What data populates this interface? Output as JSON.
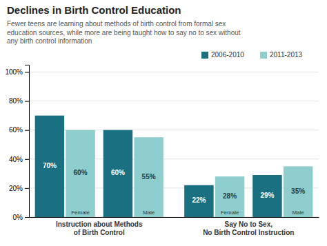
{
  "chart_data": {
    "type": "bar",
    "title": "Declines in Birth Control Education",
    "subtitle": "Fewer teens are learning about methods of birth control from formal sex\neducation sources, while more are being taught how to say no to sex without\nany birth control information",
    "categories": [
      "Female",
      "Male",
      "Female",
      "Male"
    ],
    "group_labels": [
      "Instruction about Methods\nof Birth Control",
      "Say No to Sex,\nNo Birth Control Instruction"
    ],
    "series": [
      {
        "name": "2006-2010",
        "color": "#1a7080",
        "values": [
          70,
          60,
          22,
          29
        ],
        "value_labels": [
          "70%",
          "60%",
          "22%",
          "29%"
        ]
      },
      {
        "name": "2011-2013",
        "color": "#8ecece",
        "values": [
          60,
          55,
          28,
          35
        ],
        "value_labels": [
          "60%",
          "55%",
          "28%",
          "35%"
        ]
      }
    ],
    "ylim": [
      0,
      105
    ],
    "yticks": [
      {
        "value": 0,
        "label": "0%"
      },
      {
        "value": 20,
        "label": "20%"
      },
      {
        "value": 40,
        "label": "40%"
      },
      {
        "value": 60,
        "label": "60%"
      },
      {
        "value": 80,
        "label": "80%"
      },
      {
        "value": 100,
        "label": "100%"
      }
    ],
    "grid": true,
    "data_labels": true
  }
}
